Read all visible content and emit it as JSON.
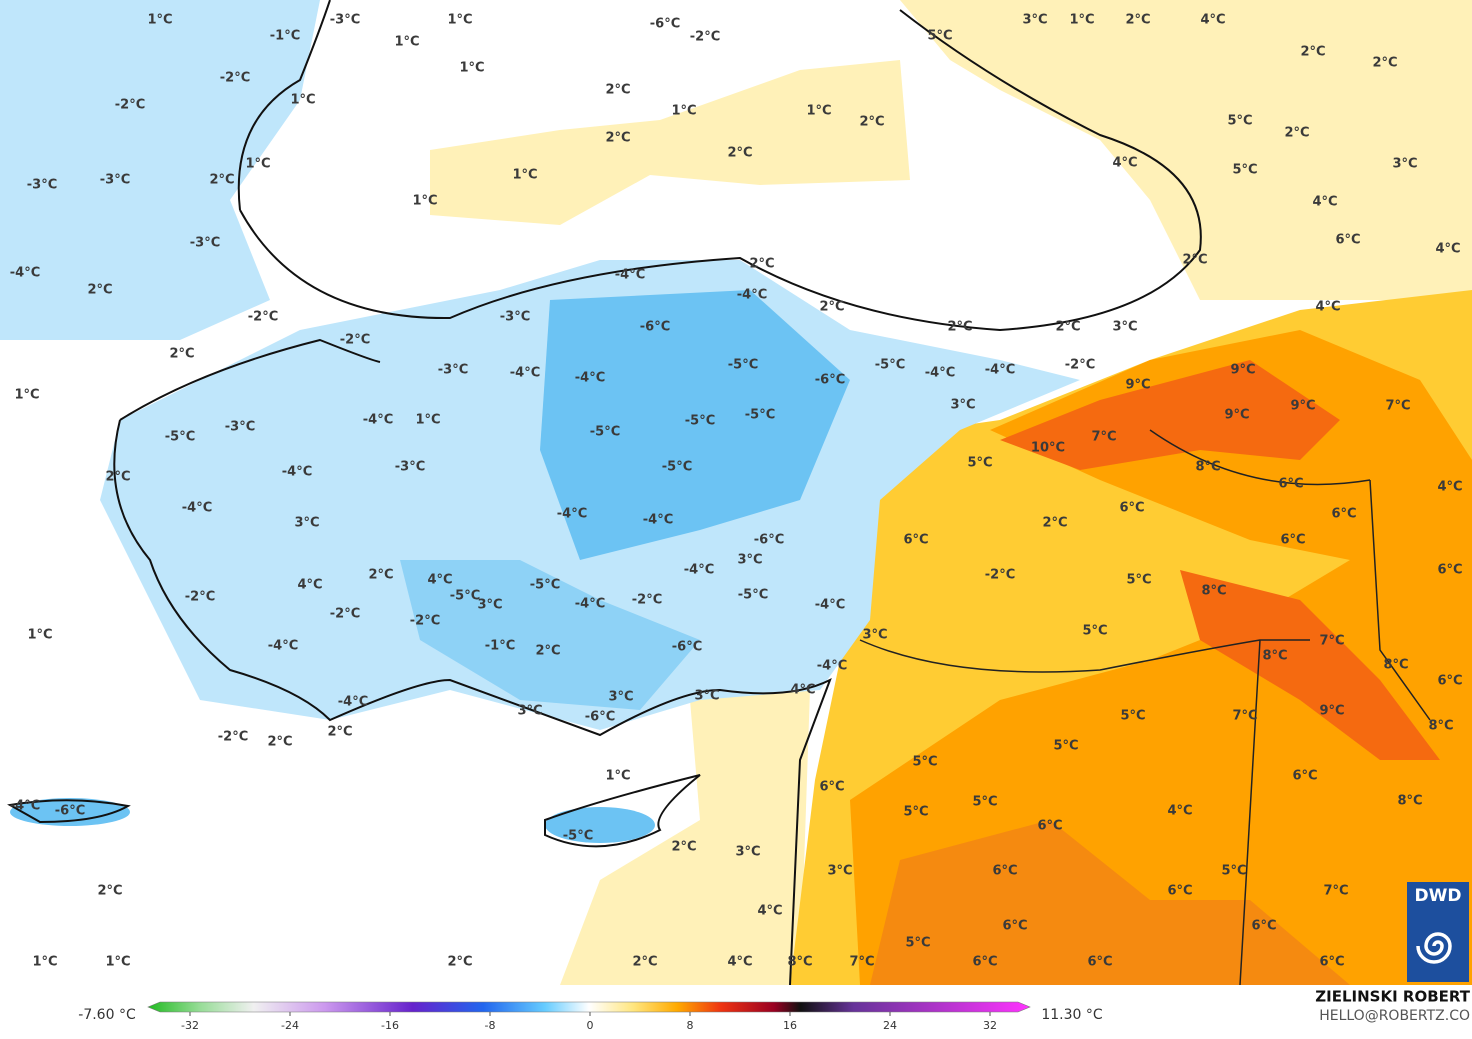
{
  "map": {
    "labels": [
      "1°C",
      "-1°C",
      "-3°C",
      "1°C",
      "1°C",
      "1°C",
      "-6°C",
      "-2°C",
      "5°C",
      "3°C",
      "1°C",
      "2°C",
      "4°C",
      "2°C",
      "2°C",
      "-2°C",
      "1°C",
      "-2°C",
      "2°C",
      "1°C",
      "1°C",
      "2°C",
      "2°C",
      "2°C",
      "1°C",
      "1°C",
      "1°C",
      "-3°C",
      "-3°C",
      "2°C",
      "5°C",
      "2°C",
      "3°C",
      "4°C",
      "5°C",
      "4°C",
      "6°C",
      "4°C",
      "-3°C",
      "-4°C",
      "2°C",
      "2°C",
      "2°C",
      "-4°C",
      "-4°C",
      "2°C",
      "4°C",
      "-2°C",
      "-3°C",
      "-6°C",
      "2°C",
      "2°C",
      "3°C",
      "-2°C",
      "2°C",
      "-2°C",
      "-5°C",
      "-5°C",
      "-3°C",
      "-4°C",
      "-4°C",
      "-6°C",
      "-4°C",
      "-4°C",
      "9°C",
      "9°C",
      "1°C",
      "-4°C",
      "1°C",
      "-5°C",
      "-5°C",
      "3°C",
      "9°C",
      "9°C",
      "7°C",
      "-3°C",
      "-5°C",
      "-5°C",
      "7°C",
      "10°C",
      "5°C",
      "-5°C",
      "-3°C",
      "-4°C",
      "8°C",
      "2°C",
      "6°C",
      "4°C",
      "-4°C",
      "-4°C",
      "-4°C",
      "6°C",
      "6°C",
      "3°C",
      "2°C",
      "6°C",
      "-6°C",
      "6°C",
      "3°C",
      "2°C",
      "4°C",
      "-4°C",
      "-2°C",
      "6°C",
      "4°C",
      "-5°C",
      "5°C",
      "-5°C",
      "-2°C",
      "8°C",
      "3°C",
      "-4°C",
      "-2°C",
      "-5°C",
      "-4°C",
      "-2°C",
      "-2°C",
      "1°C",
      "3°C",
      "5°C",
      "7°C",
      "-4°C",
      "-1°C",
      "-6°C",
      "2°C",
      "8°C",
      "8°C",
      "-4°C",
      "6°C",
      "3°C",
      "4°C",
      "3°C",
      "-4°C",
      "3°C",
      "-6°C",
      "5°C",
      "7°C",
      "9°C",
      "8°C",
      "2°C",
      "-2°C",
      "2°C",
      "5°C",
      "5°C",
      "1°C",
      "6°C",
      "6°C",
      "5°C",
      "5°C",
      "-4°C",
      "-6°C",
      "4°C",
      "8°C",
      "6°C",
      "-5°C",
      "2°C",
      "3°C",
      "6°C",
      "3°C",
      "5°C",
      "2°C",
      "6°C",
      "7°C",
      "4°C",
      "5°C",
      "6°C",
      "6°C",
      "1°C",
      "1°C",
      "2°C",
      "2°C",
      "4°C",
      "8°C",
      "7°C",
      "6°C",
      "6°C",
      "6°C"
    ]
  },
  "colorbar": {
    "min_label": "-7.60 °C",
    "max_label": "11.30 °C",
    "ticks": [
      -32,
      -24,
      -16,
      -8,
      0,
      8,
      16,
      24,
      32
    ]
  },
  "credits": {
    "author": "ZIELINSKI ROBERT",
    "email": "HELLO@ROBERTZ.CO"
  },
  "logo": "DWD"
}
